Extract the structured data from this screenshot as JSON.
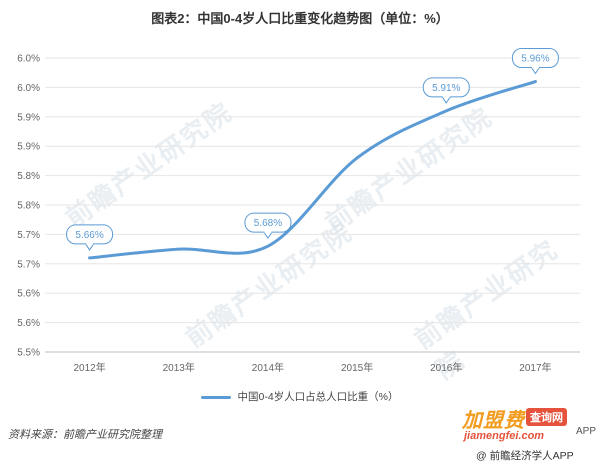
{
  "title": "图表2：中国0-4岁人口比重变化趋势图（单位：%）",
  "source": "资料来源：前瞻产业研究院整理",
  "watermark_text": "前瞻产业研究院",
  "logo": {
    "main": "加盟费",
    "chip": "查询网",
    "url": "jiamengfei.com",
    "app_suffix": "APP"
  },
  "footer_brand": "@ 前瞻经济学人APP",
  "colors": {
    "line": "#5b9bd5",
    "grid": "#e6e6e6"
  },
  "chart_data": {
    "type": "line",
    "categories": [
      "2012年",
      "2013年",
      "2014年",
      "2015年",
      "2016年",
      "2017年"
    ],
    "series": [
      {
        "name": "中国0-4岁人口占总人口比重（%）",
        "values": [
          5.66,
          5.675,
          5.68,
          5.83,
          5.91,
          5.96
        ]
      }
    ],
    "data_labels": [
      "5.66%",
      "",
      "5.68%",
      "",
      "5.91%",
      "5.96%"
    ],
    "y_tick_labels": [
      "5.5%",
      "5.6%",
      "5.6%",
      "5.7%",
      "5.7%",
      "5.8%",
      "5.8%",
      "5.9%",
      "5.9%",
      "6.0%",
      "6.0%"
    ],
    "ylim": [
      5.5,
      6.0
    ],
    "grid": true,
    "legend_position": "bottom"
  }
}
